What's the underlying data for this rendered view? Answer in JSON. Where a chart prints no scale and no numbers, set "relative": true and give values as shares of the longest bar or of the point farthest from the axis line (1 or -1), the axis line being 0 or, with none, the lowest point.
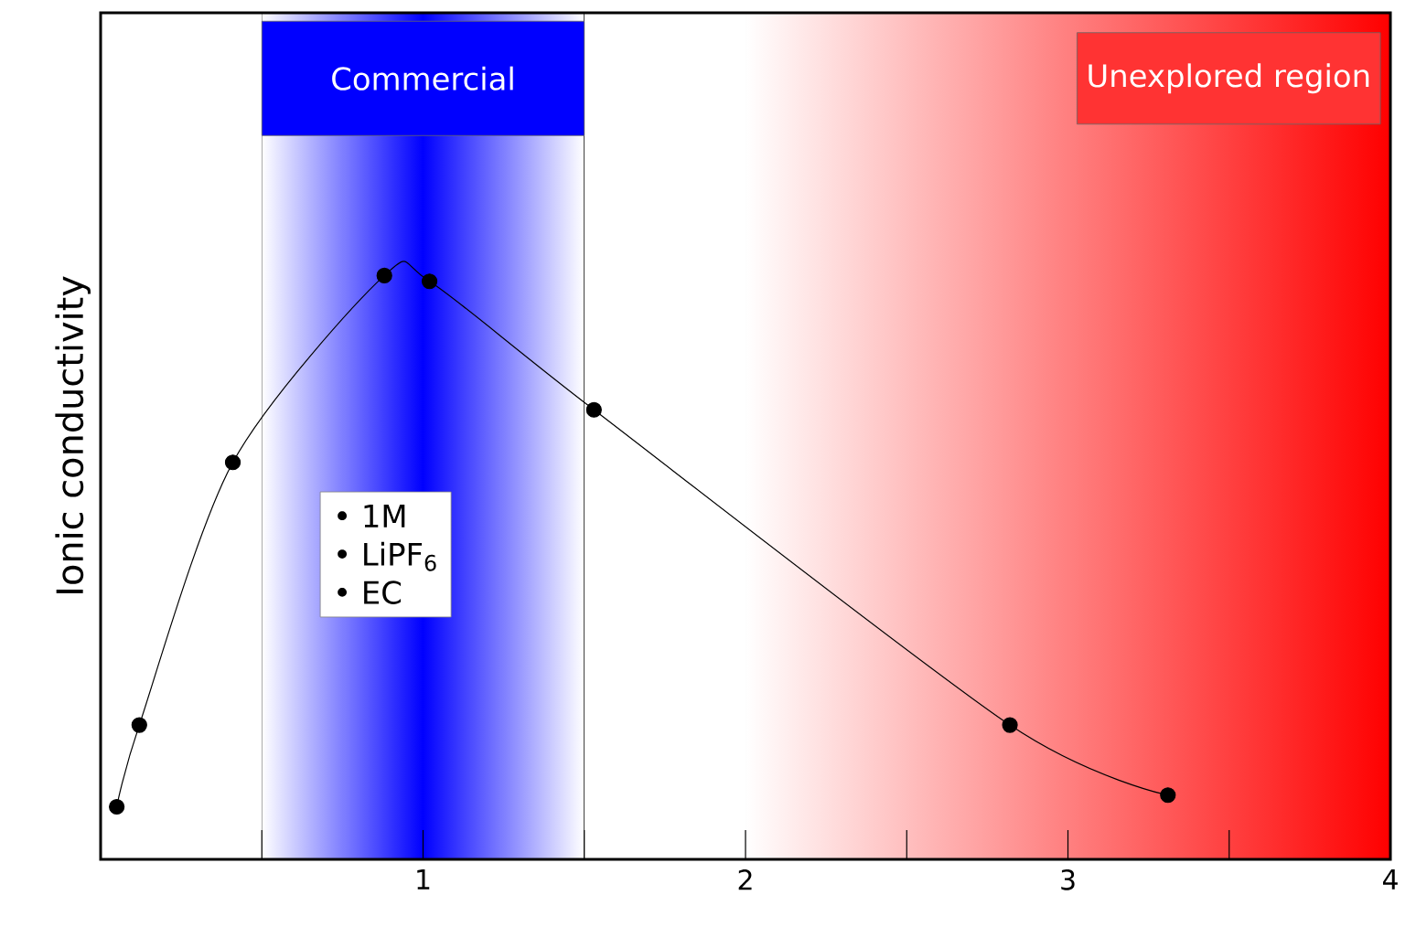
{
  "chart_data": {
    "type": "line",
    "relative": true,
    "ylabel": "Ionic conductivity",
    "x": [
      0.05,
      0.12,
      0.41,
      0.88,
      1.02,
      1.53,
      2.82,
      3.31
    ],
    "series": [
      {
        "color": "#000000",
        "values": [
          0.09,
          0.23,
          0.68,
          1.0,
          0.99,
          0.77,
          0.23,
          0.11
        ]
      }
    ],
    "marker": "circle",
    "line_style": "solid",
    "xlim": [
      0,
      4
    ],
    "xticks": [
      {
        "value": 0.5,
        "label": null
      },
      1,
      {
        "value": 1.5,
        "label": null
      },
      2,
      {
        "value": 2.5,
        "label": null
      },
      3,
      {
        "value": 3.5,
        "label": null
      },
      4
    ],
    "tick_labels": "x",
    "grid": false,
    "bands": [
      {
        "axis": "x",
        "from": 0.5,
        "to": 1.5,
        "label": "Commercial",
        "color": "#0000ff"
      },
      {
        "axis": "x",
        "from": 2,
        "to": 4,
        "label": "Unexplored region",
        "color": "#ff0000"
      }
    ],
    "annotations": [
      "• 1M",
      "• LiPF$_{6}$",
      "• EC"
    ]
  }
}
